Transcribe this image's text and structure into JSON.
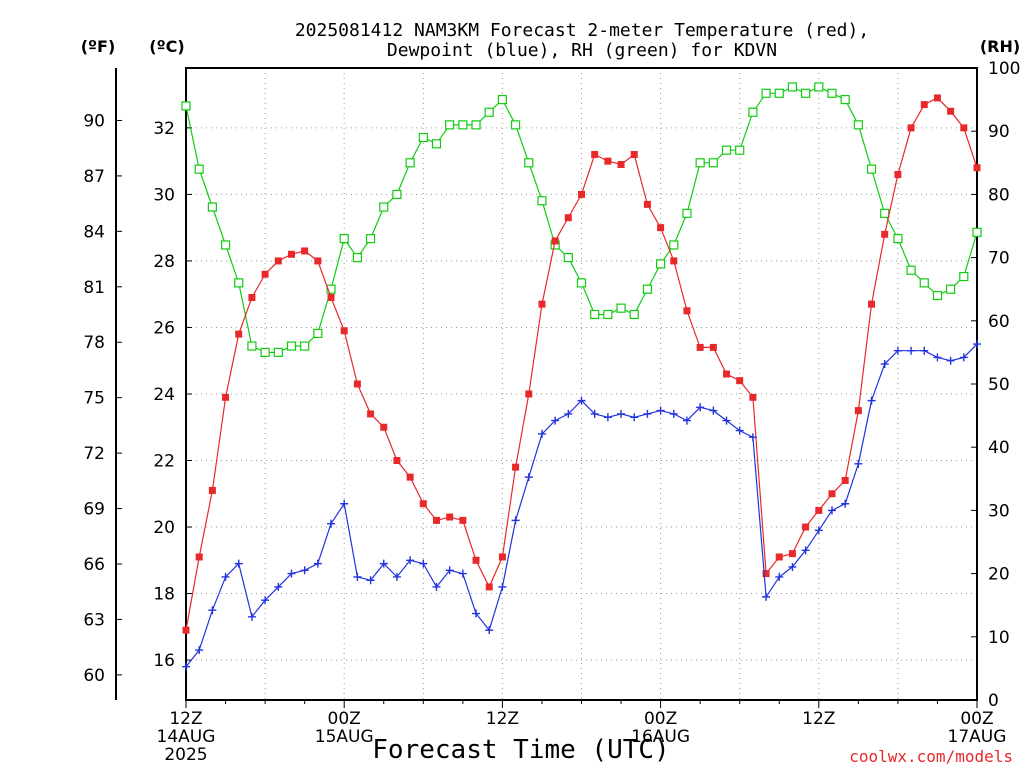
{
  "title_line1": "2025081412 NAM3KM Forecast 2-meter Temperature (red),",
  "title_line2": "Dewpoint (blue), RH (green) for KDVN",
  "unit_f": "(ºF)",
  "unit_c": "(ºC)",
  "unit_rh": "(RH)",
  "xlabel": "Forecast Time (UTC)",
  "credit": "coolwx.com/models",
  "colors": {
    "temperature": "#e8292b",
    "dewpoint": "#2233dd",
    "rh": "#11cc11",
    "grid": "#999999"
  },
  "chart_data": {
    "type": "line",
    "x_axis": {
      "range_hours": [
        0,
        60
      ],
      "ticks": [
        {
          "hour": 0,
          "label": "12Z",
          "date": "14AUG",
          "year": "2025"
        },
        {
          "hour": 12,
          "label": "00Z",
          "date": "15AUG",
          "year": ""
        },
        {
          "hour": 24,
          "label": "12Z",
          "date": "",
          "year": ""
        },
        {
          "hour": 36,
          "label": "00Z",
          "date": "16AUG",
          "year": ""
        },
        {
          "hour": 48,
          "label": "12Z",
          "date": "",
          "year": ""
        },
        {
          "hour": 60,
          "label": "00Z",
          "date": "17AUG",
          "year": ""
        }
      ]
    },
    "y_celsius": {
      "range": [
        14.8,
        33.8
      ],
      "ticks": [
        16,
        18,
        20,
        22,
        24,
        26,
        28,
        30,
        32
      ]
    },
    "y_fahrenheit": {
      "ticks": [
        60,
        63,
        66,
        69,
        72,
        75,
        78,
        81,
        84,
        87,
        90
      ]
    },
    "y_rh": {
      "range": [
        0,
        100
      ],
      "ticks": [
        0,
        10,
        20,
        30,
        40,
        50,
        60,
        70,
        80,
        90,
        100
      ]
    },
    "series": [
      {
        "name": "2-meter Temperature",
        "unit": "C",
        "x": [
          0,
          1,
          2,
          3,
          4,
          5,
          6,
          7,
          8,
          9,
          10,
          11,
          12,
          13,
          14,
          15,
          16,
          17,
          18,
          19,
          20,
          21,
          22,
          23,
          24,
          25,
          26,
          27,
          28,
          29,
          30,
          31,
          32,
          33,
          34,
          35,
          36,
          37,
          38,
          39,
          40,
          41,
          42,
          43,
          44,
          45,
          46,
          47,
          48,
          49,
          50,
          51,
          52,
          53,
          54,
          55,
          56,
          57,
          58,
          59,
          60
        ],
        "values": [
          16.9,
          19.1,
          21.1,
          23.9,
          25.8,
          26.9,
          27.6,
          28.0,
          28.2,
          28.3,
          28.0,
          26.9,
          25.9,
          24.3,
          23.4,
          23.0,
          22.0,
          21.5,
          20.7,
          20.2,
          20.3,
          20.2,
          19.0,
          18.2,
          19.1,
          21.8,
          24.0,
          26.7,
          28.6,
          29.3,
          30.0,
          31.2,
          31.0,
          30.9,
          31.2,
          29.7,
          29.0,
          28.0,
          26.5,
          25.4,
          25.4,
          24.6,
          24.4,
          23.9,
          18.6,
          19.1,
          19.2,
          20.0,
          20.5,
          21.0,
          21.4,
          23.5,
          26.7,
          28.8,
          30.6,
          32.0,
          32.7,
          32.9,
          32.5,
          32.0,
          30.8
        ]
      },
      {
        "name": "Dewpoint",
        "unit": "C",
        "x": [
          0,
          1,
          2,
          3,
          4,
          5,
          6,
          7,
          8,
          9,
          10,
          11,
          12,
          13,
          14,
          15,
          16,
          17,
          18,
          19,
          20,
          21,
          22,
          23,
          24,
          25,
          26,
          27,
          28,
          29,
          30,
          31,
          32,
          33,
          34,
          35,
          36,
          37,
          38,
          39,
          40,
          41,
          42,
          43,
          44,
          45,
          46,
          47,
          48,
          49,
          50,
          51,
          52,
          53,
          54,
          55,
          56,
          57,
          58,
          59,
          60
        ],
        "values": [
          15.8,
          16.3,
          17.5,
          18.5,
          18.9,
          17.3,
          17.8,
          18.2,
          18.6,
          18.7,
          18.9,
          20.1,
          20.7,
          18.5,
          18.4,
          18.9,
          18.5,
          19.0,
          18.9,
          18.2,
          18.7,
          18.6,
          17.4,
          16.9,
          18.2,
          20.2,
          21.5,
          22.8,
          23.2,
          23.4,
          23.8,
          23.4,
          23.3,
          23.4,
          23.3,
          23.4,
          23.5,
          23.4,
          23.2,
          23.6,
          23.5,
          23.2,
          22.9,
          22.7,
          17.9,
          18.5,
          18.8,
          19.3,
          19.9,
          20.5,
          20.7,
          21.9,
          23.8,
          24.9,
          25.3,
          25.3,
          25.3,
          25.1,
          25.0,
          25.1,
          25.5
        ]
      },
      {
        "name": "RH",
        "unit": "%",
        "x": [
          0,
          1,
          2,
          3,
          4,
          5,
          6,
          7,
          8,
          9,
          10,
          11,
          12,
          13,
          14,
          15,
          16,
          17,
          18,
          19,
          20,
          21,
          22,
          23,
          24,
          25,
          26,
          27,
          28,
          29,
          30,
          31,
          32,
          33,
          34,
          35,
          36,
          37,
          38,
          39,
          40,
          41,
          42,
          43,
          44,
          45,
          46,
          47,
          48,
          49,
          50,
          51,
          52,
          53,
          54,
          55,
          56,
          57,
          58,
          59,
          60
        ],
        "values": [
          94,
          84,
          78,
          72,
          66,
          56,
          55,
          55,
          56,
          56,
          58,
          65,
          73,
          70,
          73,
          78,
          80,
          85,
          89,
          88,
          91,
          91,
          91,
          93,
          95,
          91,
          85,
          79,
          72,
          70,
          66,
          61,
          61,
          62,
          61,
          65,
          69,
          72,
          77,
          85,
          85,
          87,
          87,
          93,
          96,
          96,
          97,
          96,
          97,
          96,
          95,
          91,
          84,
          77,
          73,
          68,
          66,
          64,
          65,
          67,
          74
        ]
      }
    ]
  }
}
